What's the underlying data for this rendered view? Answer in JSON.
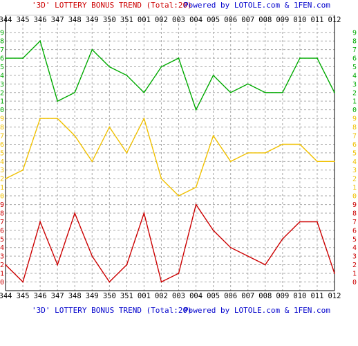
{
  "chart_data": {
    "type": "line",
    "title": "'3D' LOTTERY BONUS TREND (Total:20)",
    "credit": "Powered by LOTOLE.com & 1FEN.com",
    "categories": [
      "344",
      "345",
      "346",
      "347",
      "348",
      "349",
      "350",
      "351",
      "001",
      "002",
      "003",
      "004",
      "005",
      "006",
      "007",
      "008",
      "009",
      "010",
      "011",
      "012"
    ],
    "ylim": [
      0,
      9
    ],
    "y_ticks": [
      "0",
      "1",
      "2",
      "3",
      "4",
      "5",
      "6",
      "7",
      "8",
      "9"
    ],
    "grid": true,
    "series": [
      {
        "values": [
          6,
          6,
          8,
          1,
          2,
          7,
          5,
          4,
          2,
          5,
          6,
          0,
          4,
          2,
          3,
          2,
          2,
          6,
          6,
          2
        ],
        "color": "#00aa00"
      },
      {
        "values": [
          2,
          3,
          9,
          9,
          7,
          4,
          8,
          5,
          9,
          2,
          0,
          1,
          7,
          4,
          5,
          5,
          6,
          6,
          4,
          4
        ],
        "color": "#f0c000"
      },
      {
        "values": [
          2,
          0,
          7,
          2,
          8,
          3,
          0,
          2,
          8,
          0,
          1,
          9,
          6,
          4,
          3,
          2,
          5,
          7,
          7,
          1
        ],
        "color": "#cc0000"
      }
    ],
    "colors": {
      "title_red": "#cc0000",
      "title_blue": "#0000cc",
      "grid": "#aaaaaa",
      "border": "#000000"
    }
  }
}
